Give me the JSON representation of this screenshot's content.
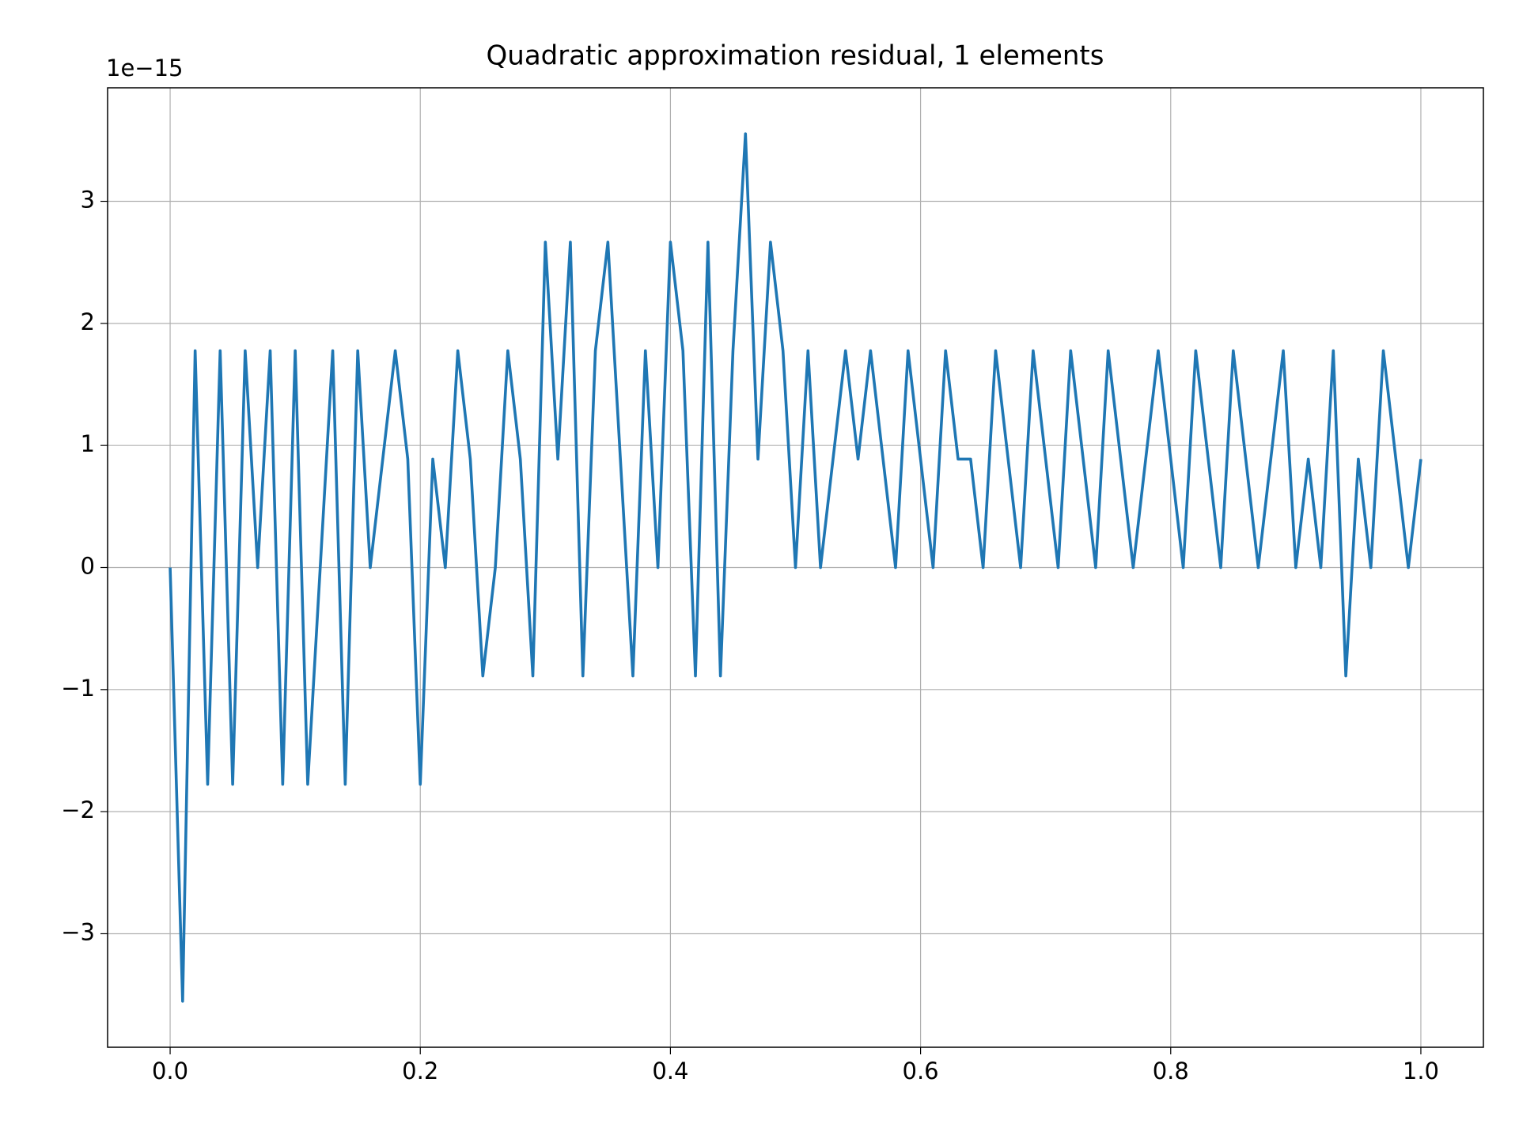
{
  "chart_data": {
    "type": "line",
    "title": "Quadratic approximation residual, 1 elements",
    "y_offset_label": "1e−15",
    "x": [
      0,
      0.01,
      0.02,
      0.03,
      0.04,
      0.05,
      0.06,
      0.07,
      0.08,
      0.09,
      0.1,
      0.11,
      0.12,
      0.13,
      0.14,
      0.15,
      0.16,
      0.17,
      0.18,
      0.19,
      0.2,
      0.21,
      0.22,
      0.23,
      0.24,
      0.25,
      0.26,
      0.27,
      0.28,
      0.29,
      0.3,
      0.31,
      0.32,
      0.33,
      0.34,
      0.35,
      0.36,
      0.37,
      0.38,
      0.39,
      0.4,
      0.41,
      0.42,
      0.43,
      0.44,
      0.45,
      0.46,
      0.47,
      0.48,
      0.49,
      0.5,
      0.51,
      0.52,
      0.53,
      0.54,
      0.55,
      0.56,
      0.57,
      0.58,
      0.59,
      0.6,
      0.61,
      0.62,
      0.63,
      0.64,
      0.65,
      0.66,
      0.67,
      0.68,
      0.69,
      0.7,
      0.71,
      0.72,
      0.73,
      0.74,
      0.75,
      0.76,
      0.77,
      0.78,
      0.79,
      0.8,
      0.81,
      0.82,
      0.83,
      0.84,
      0.85,
      0.86,
      0.87,
      0.88,
      0.89,
      0.9,
      0.91,
      0.92,
      0.93,
      0.94,
      0.95,
      0.96,
      0.97,
      0.98,
      0.99,
      1.0
    ],
    "series": [
      {
        "color": "#1f77b4",
        "values": [
          0,
          -3.553,
          1.776,
          -1.776,
          1.776,
          -1.776,
          1.776,
          0,
          1.776,
          -1.776,
          1.776,
          -1.776,
          0,
          1.776,
          -1.776,
          1.776,
          0,
          0.888,
          1.776,
          0.888,
          -1.776,
          0.888,
          0,
          1.776,
          0.888,
          -0.888,
          0,
          1.776,
          0.888,
          -0.888,
          2.665,
          0.888,
          2.665,
          -0.888,
          1.776,
          2.665,
          0.888,
          -0.888,
          1.776,
          0,
          2.665,
          1.776,
          -0.888,
          2.665,
          -0.888,
          1.776,
          3.553,
          0.888,
          2.665,
          1.776,
          0,
          1.776,
          0,
          0.888,
          1.776,
          0.888,
          1.776,
          0.888,
          0,
          1.776,
          0.888,
          0,
          1.776,
          0.888,
          0.888,
          0,
          1.776,
          0.888,
          0,
          1.776,
          0.888,
          0,
          1.776,
          0.888,
          0,
          1.776,
          0.888,
          0,
          0.888,
          1.776,
          0.888,
          0,
          1.776,
          0.888,
          0,
          1.776,
          0.888,
          0,
          0.888,
          1.776,
          0,
          0.888,
          0,
          1.776,
          -0.888,
          0.888,
          0,
          1.776,
          0.888,
          0,
          0.888
        ]
      }
    ],
    "xlim": [
      -0.05,
      1.05
    ],
    "ylim": [
      -3.93,
      3.93
    ],
    "xticks": [
      {
        "value": 0,
        "label": "0.0"
      },
      {
        "value": 0.2,
        "label": "0.2"
      },
      {
        "value": 0.4,
        "label": "0.4"
      },
      {
        "value": 0.6,
        "label": "0.6"
      },
      {
        "value": 0.8,
        "label": "0.8"
      },
      {
        "value": 1,
        "label": "1.0"
      }
    ],
    "yticks": [
      {
        "value": -3,
        "label": "−3"
      },
      {
        "value": -2,
        "label": "−2"
      },
      {
        "value": -1,
        "label": "−1"
      },
      0,
      1,
      2,
      3
    ],
    "grid": true
  }
}
